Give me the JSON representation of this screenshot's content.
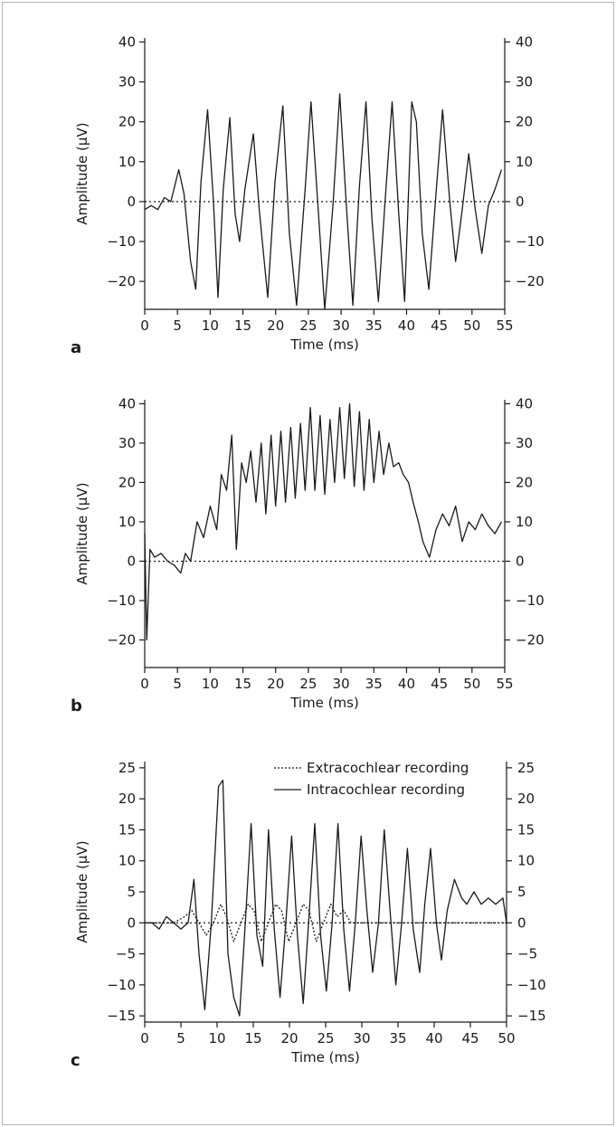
{
  "chart_data": [
    {
      "type": "line",
      "panel_label": "a",
      "xlabel": "Time (ms)",
      "ylabel": "Amplitude (µV)",
      "xlim": [
        0,
        55
      ],
      "ylim": [
        -27,
        41
      ],
      "xticks": [
        "0",
        "5",
        "10",
        "15",
        "20",
        "25",
        "30",
        "35",
        "40",
        "45",
        "50",
        "55"
      ],
      "yticks_left": [
        "40",
        "30",
        "20",
        "10",
        "0",
        "−10",
        "−20"
      ],
      "yticks_right": [
        "40",
        "30",
        "20",
        "10",
        "0",
        "−10",
        "−20"
      ],
      "reference_line": {
        "y": 0,
        "style": "dotted"
      },
      "series": [
        {
          "style": "solid",
          "x": [
            0,
            1,
            2,
            3,
            4,
            5.2,
            6,
            7,
            7.8,
            8.6,
            9.6,
            10.5,
            11.2,
            12,
            13,
            13.8,
            14.5,
            15.3,
            16.6,
            17.5,
            18.8,
            19.9,
            21.1,
            22.1,
            23.2,
            24.5,
            25.4,
            26.5,
            27.5,
            28.8,
            29.8,
            30.8,
            31.8,
            32.8,
            33.8,
            34.7,
            35.7,
            36.8,
            37.8,
            38.8,
            39.7,
            40.8,
            41.5,
            42.4,
            43.4,
            44.5,
            45.5,
            46.6,
            47.5,
            48.5,
            49.5,
            50.5,
            51.5,
            52.5,
            53.5,
            54.5
          ],
          "y": [
            -2,
            -1,
            -2,
            1,
            0,
            8,
            2,
            -15,
            -22,
            5,
            23,
            0,
            -24,
            3,
            21,
            -3,
            -10,
            3,
            17,
            -2,
            -24,
            5,
            24,
            -8,
            -26,
            3,
            25,
            -2,
            -27,
            0,
            27,
            -1,
            -26,
            4,
            25,
            -4,
            -25,
            2,
            25,
            -3,
            -25,
            25,
            20,
            -8,
            -22,
            2,
            23,
            0,
            -15,
            -2,
            12,
            -2,
            -13,
            -1,
            3,
            8
          ]
        }
      ]
    },
    {
      "type": "line",
      "panel_label": "b",
      "xlabel": "Time (ms)",
      "ylabel": "Amplitude (µV)",
      "xlim": [
        0,
        55
      ],
      "ylim": [
        -27,
        41
      ],
      "xticks": [
        "0",
        "5",
        "10",
        "15",
        "20",
        "25",
        "30",
        "35",
        "40",
        "45",
        "50",
        "55"
      ],
      "yticks_left": [
        "40",
        "30",
        "20",
        "10",
        "0",
        "−10",
        "−20"
      ],
      "yticks_right": [
        "40",
        "30",
        "20",
        "10",
        "0",
        "−10",
        "−20"
      ],
      "reference_line": {
        "y": 0,
        "style": "dotted"
      },
      "series": [
        {
          "style": "solid",
          "x": [
            0,
            0.3,
            0.8,
            1.5,
            2.5,
            3.5,
            4.5,
            5.5,
            6.2,
            7,
            8,
            9,
            10,
            11,
            11.7,
            12.5,
            13.3,
            14,
            14.8,
            15.5,
            16.2,
            17,
            17.8,
            18.5,
            19.3,
            20,
            20.8,
            21.5,
            22.3,
            23,
            23.8,
            24.5,
            25.3,
            26,
            26.8,
            27.5,
            28.3,
            29,
            29.8,
            30.5,
            31.3,
            32,
            32.8,
            33.5,
            34.3,
            35,
            35.8,
            36.5,
            37.3,
            38,
            38.8,
            39.5,
            40.3,
            41,
            41.8,
            42.5,
            43.5,
            44.5,
            45.5,
            46.5,
            47.5,
            48.5,
            49.5,
            50.5,
            51.5,
            52.5,
            53.5,
            54.5
          ],
          "y": [
            7,
            -20,
            3,
            1,
            2,
            0,
            -1,
            -3,
            2,
            0,
            10,
            6,
            14,
            8,
            22,
            18,
            32,
            3,
            25,
            20,
            28,
            15,
            30,
            12,
            32,
            14,
            33,
            15,
            34,
            16,
            35,
            18,
            39,
            18,
            37,
            17,
            36,
            20,
            39,
            21,
            40,
            19,
            38,
            18,
            36,
            20,
            33,
            22,
            30,
            24,
            25,
            22,
            20,
            15,
            10,
            5,
            1,
            8,
            12,
            9,
            14,
            5,
            10,
            8,
            12,
            9,
            7,
            10
          ]
        }
      ]
    },
    {
      "type": "line",
      "panel_label": "c",
      "xlabel": "Time (ms)",
      "ylabel": "Amplitude (µV)",
      "xlim": [
        0,
        50
      ],
      "ylim": [
        -16,
        26
      ],
      "xticks": [
        "0",
        "5",
        "10",
        "15",
        "20",
        "25",
        "30",
        "35",
        "40",
        "45",
        "50"
      ],
      "yticks_left": [
        "25",
        "20",
        "15",
        "10",
        "5",
        "0",
        "−5",
        "−10",
        "−15"
      ],
      "yticks_right": [
        "25",
        "20",
        "15",
        "10",
        "5",
        "0",
        "−5",
        "−10",
        "−15"
      ],
      "reference_line": {
        "y": 0,
        "style": "dotted"
      },
      "legend_position": "top-right",
      "series": [
        {
          "name": "Extracochlear recording",
          "style": "dotted",
          "x": [
            0,
            2,
            4,
            5.5,
            6.5,
            7.5,
            8.5,
            9.5,
            10.5,
            11.3,
            12.3,
            13.3,
            14.3,
            15.1,
            16.1,
            17.1,
            18.1,
            18.9,
            19.9,
            20.9,
            21.9,
            22.7,
            23.7,
            24.7,
            25.7,
            26.6,
            27.5,
            28.5,
            30,
            35,
            40,
            45,
            50
          ],
          "y": [
            0,
            0,
            0,
            1,
            2,
            0,
            -2,
            0,
            3,
            1,
            -3,
            0,
            3,
            2,
            -3,
            0,
            3,
            2,
            -3,
            0,
            3,
            2,
            -3,
            0,
            3,
            1,
            2,
            0,
            0,
            0,
            0,
            0,
            0
          ]
        },
        {
          "name": "Intracochlear recording",
          "style": "solid",
          "x": [
            0,
            1,
            2,
            3,
            4,
            5,
            6,
            6.8,
            7.5,
            8.3,
            9.2,
            10.2,
            10.8,
            11.5,
            12.3,
            13.1,
            13.9,
            14.7,
            15.5,
            16.3,
            17.1,
            17.9,
            18.7,
            19.5,
            20.3,
            21.1,
            21.9,
            22.7,
            23.5,
            24.3,
            25.1,
            25.9,
            26.7,
            27.5,
            28.3,
            29.1,
            29.9,
            30.7,
            31.5,
            32.3,
            33.1,
            33.9,
            34.7,
            35.5,
            36.3,
            37.1,
            38,
            38.7,
            39.5,
            40.3,
            41,
            41.8,
            42.8,
            43.8,
            44.5,
            45.5,
            46.5,
            47.5,
            48.5,
            49.5,
            50
          ],
          "y": [
            0,
            0,
            -1,
            1,
            0,
            -1,
            0,
            7,
            -5,
            -14,
            0,
            22,
            23,
            -5,
            -12,
            -15,
            0,
            16,
            -2,
            -7,
            15,
            -1,
            -12,
            0,
            14,
            -2,
            -13,
            1,
            16,
            -2,
            -11,
            0,
            16,
            -1,
            -11,
            0,
            14,
            2,
            -8,
            0,
            15,
            2,
            -10,
            0,
            12,
            -1,
            -8,
            3,
            12,
            0,
            -6,
            2,
            7,
            4,
            3,
            5,
            3,
            4,
            3,
            4,
            0
          ]
        }
      ]
    }
  ]
}
